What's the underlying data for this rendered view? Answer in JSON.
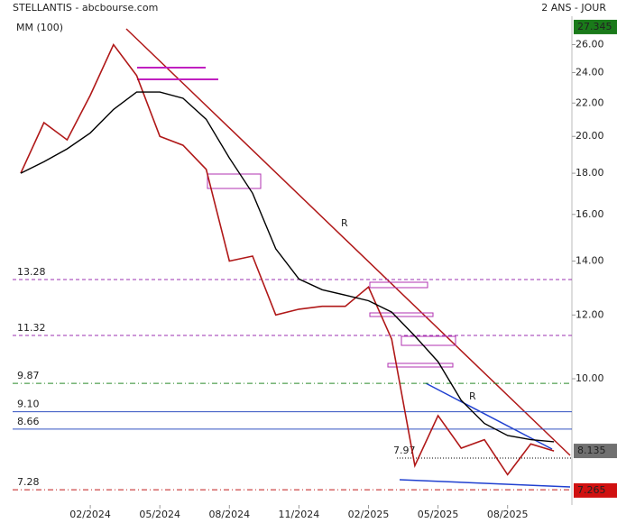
{
  "chart_data": {
    "type": "line",
    "title": "STELLANTIS - abcbourse.com",
    "subtitle": "2 ANS - JOUR",
    "log_scale": true,
    "categories": [
      null,
      null,
      null,
      "02/2024",
      null,
      null,
      "05/2024",
      null,
      null,
      "08/2024",
      null,
      null,
      "11/2024",
      null,
      null,
      "02/2025",
      null,
      null,
      "05/2025",
      null,
      null,
      "08/2025",
      null,
      null
    ],
    "series": [
      {
        "name": "STELLANTIS",
        "color": "#b01818",
        "values": [
          18.0,
          20.8,
          19.8,
          22.5,
          26.0,
          23.8,
          20.0,
          19.5,
          18.2,
          14.0,
          14.2,
          12.0,
          12.2,
          12.3,
          12.3,
          13.0,
          11.2,
          7.8,
          9.0,
          8.2,
          8.4,
          7.6,
          8.3,
          8.135
        ]
      },
      {
        "name": "MM (100)",
        "color": "#000000",
        "values": [
          18.0,
          18.6,
          19.3,
          20.2,
          21.6,
          22.7,
          22.7,
          22.3,
          21.0,
          18.8,
          17.0,
          14.5,
          13.3,
          12.9,
          12.7,
          12.5,
          12.1,
          11.3,
          10.5,
          9.4,
          8.8,
          8.5,
          8.4,
          8.35
        ]
      }
    ],
    "ylim": [
      6.97,
      28.2
    ],
    "yticks": [
      {
        "value": 10,
        "label": "10.00"
      },
      {
        "value": 12,
        "label": "12.00"
      },
      {
        "value": 14,
        "label": "14.00"
      },
      {
        "value": 16,
        "label": "16.00"
      },
      {
        "value": 18,
        "label": "18.00"
      },
      {
        "value": 20,
        "label": "20.00"
      },
      {
        "value": 22,
        "label": "22.00"
      },
      {
        "value": 24,
        "label": "24.00"
      },
      {
        "value": 26,
        "label": "26.00"
      }
    ],
    "levels": [
      {
        "value": 13.28,
        "label": "13.28",
        "color": "#9b30b0",
        "dash": "4,3"
      },
      {
        "value": 11.32,
        "label": "11.32",
        "color": "#9b30b0",
        "dash": "4,3"
      },
      {
        "value": 9.87,
        "label": "9.87",
        "color": "#2a8a2a",
        "dash": "6,3,1,3"
      },
      {
        "value": 9.1,
        "label": "9.10",
        "color": "#3050c0",
        "dash": ""
      },
      {
        "value": 8.66,
        "label": "8.66",
        "color": "#3050c0",
        "dash": ""
      },
      {
        "value": 7.97,
        "label": "7.97",
        "color": "#000000",
        "dash": "1,2"
      },
      {
        "value": 7.28,
        "label": "7.28",
        "color": "#c01818",
        "dash": "6,3,1,3"
      }
    ],
    "price_labels": [
      {
        "value": 27.345,
        "label": "27.345",
        "color": "#1a7a1a"
      },
      {
        "value": 8.135,
        "label": "8.135",
        "color": "#707070"
      },
      {
        "value": 7.265,
        "label": "7.265",
        "color": "#d01010"
      }
    ],
    "annotations": [
      "R",
      "R"
    ]
  }
}
